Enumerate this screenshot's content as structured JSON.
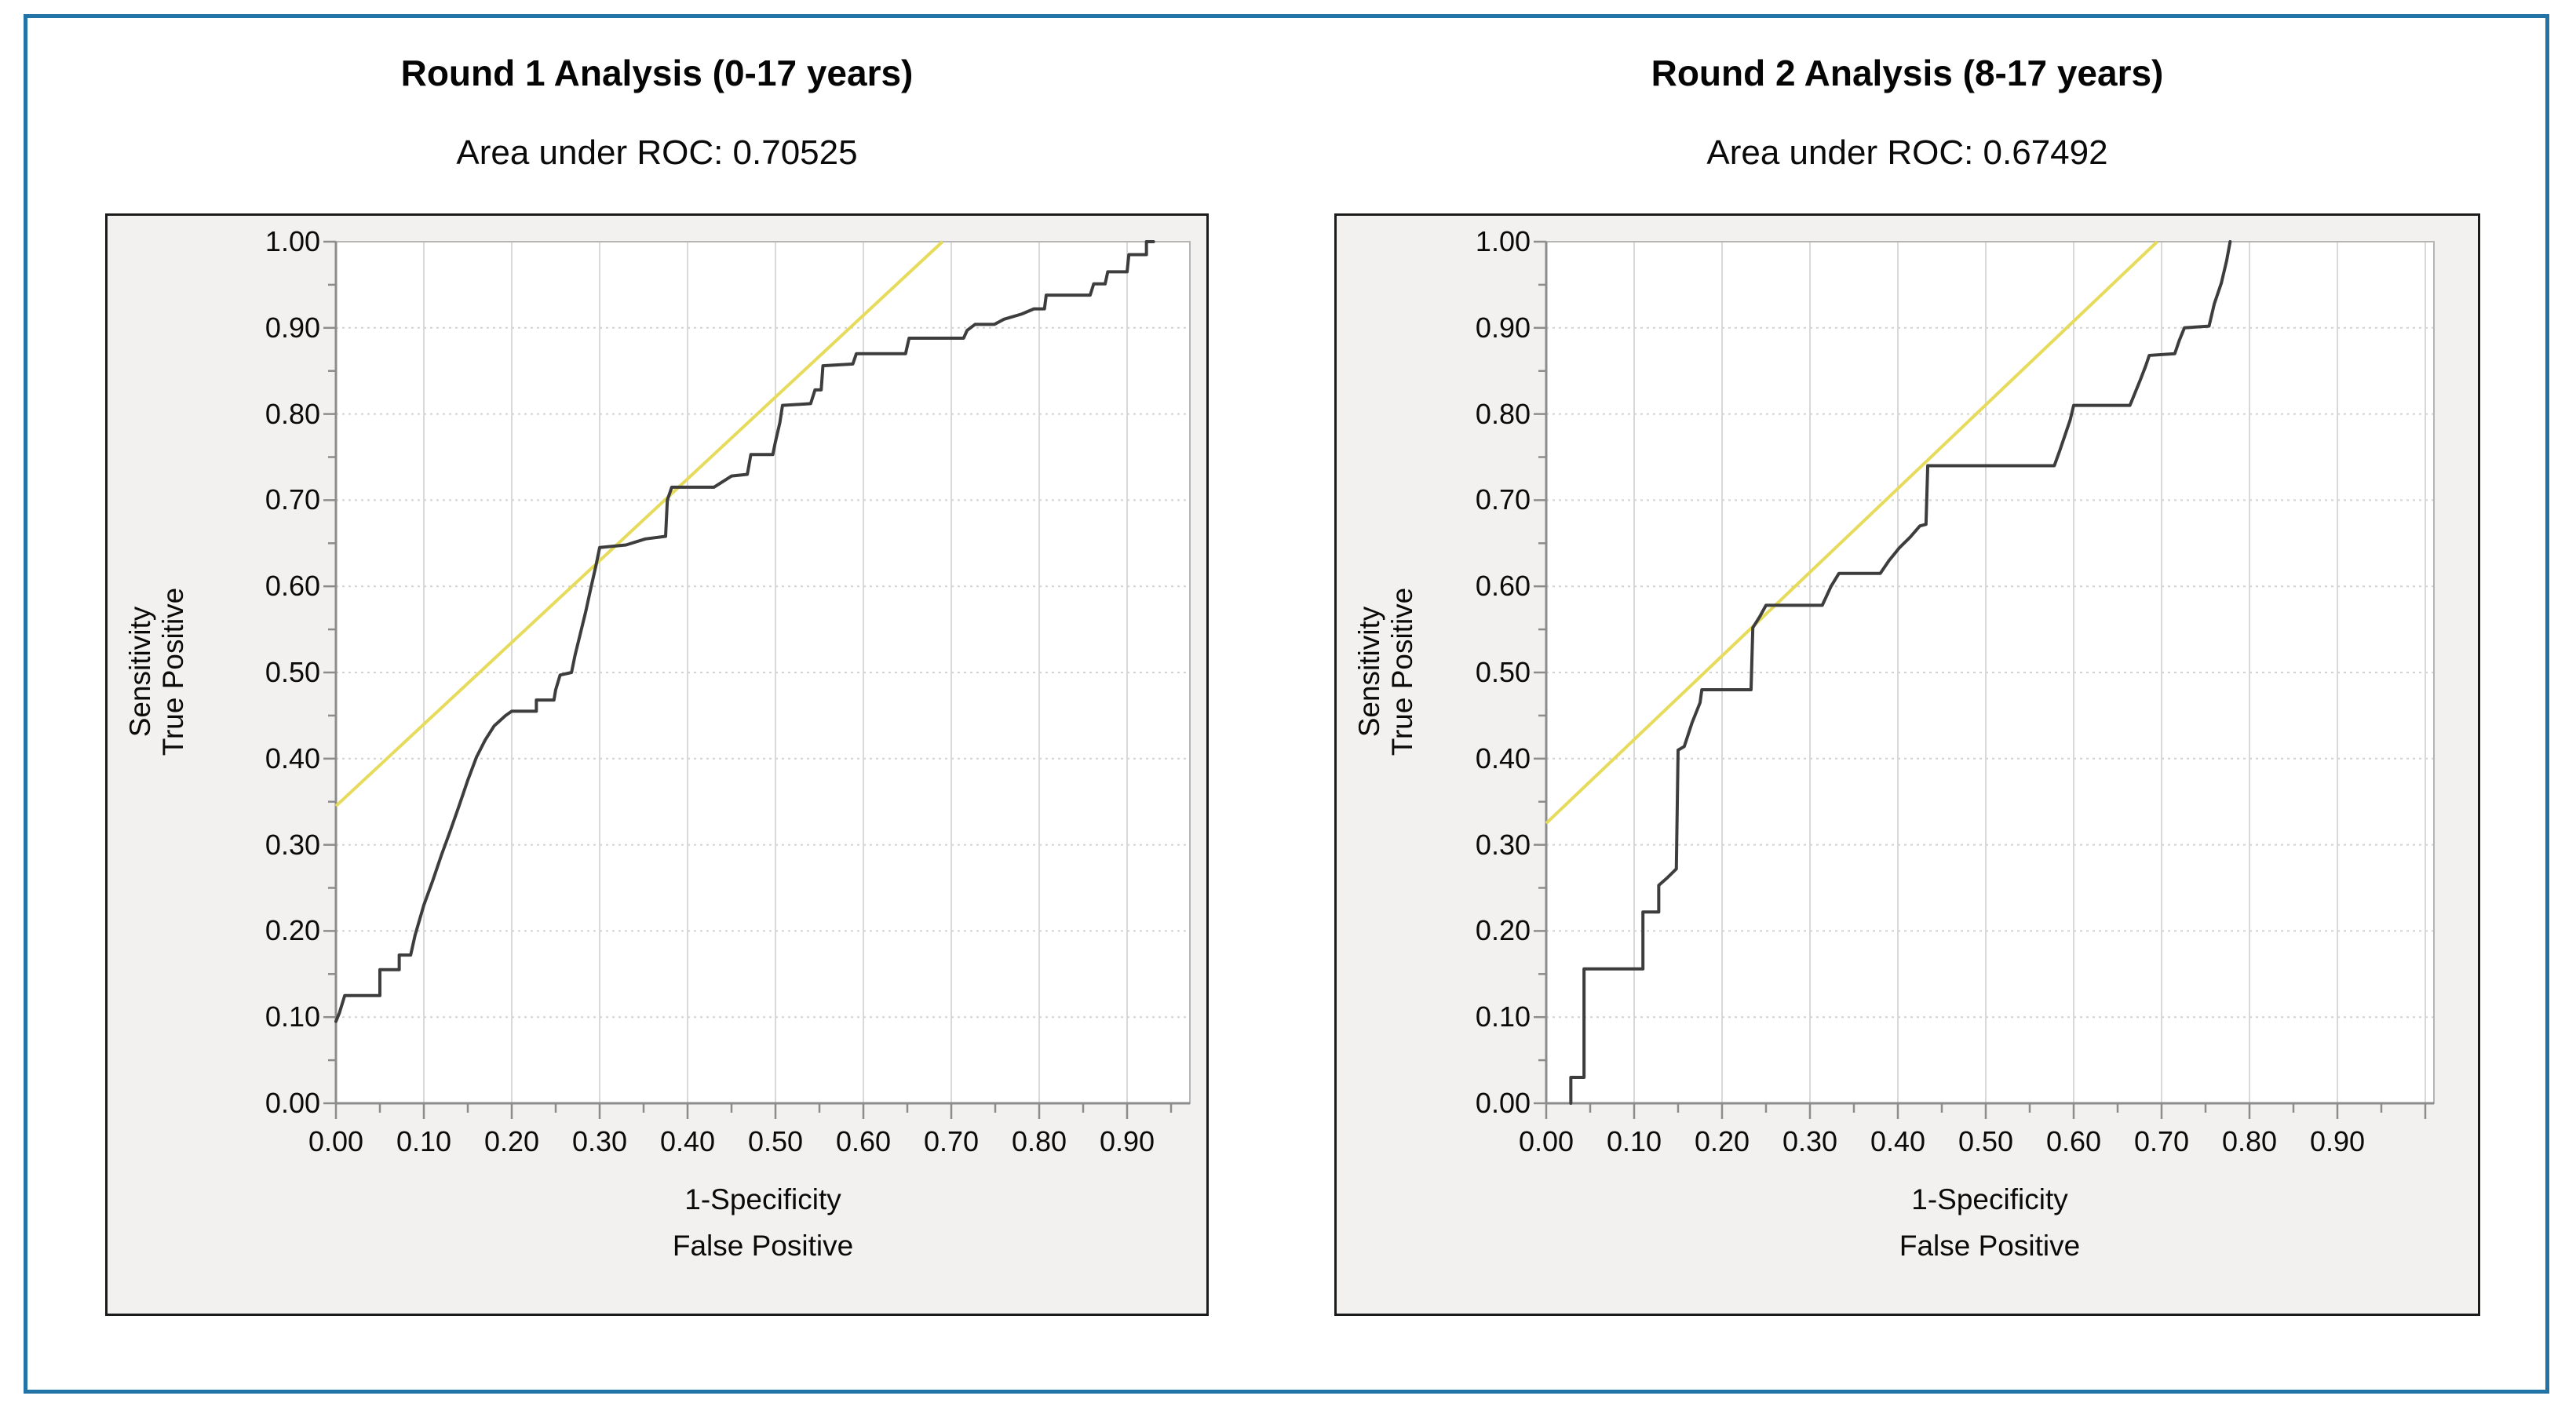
{
  "style": {
    "frame_color": "#2374a6",
    "page_background": "#ffffff",
    "panel_background": "#f2f1ef",
    "panel_border_color": "#1b1b1b",
    "plot_background": "#ffffff",
    "plot_border_color": "#b5b5b5",
    "grid_vertical_color": "#d9d9d9",
    "grid_horizontal_color": "#d2d2d2",
    "axis_line_color": "#8c8c8c",
    "tick_mark_color": "#8c8c8c",
    "curve_color": "#3d3d3d",
    "reference_line_color": "#e6db5b",
    "text_color": "#0a0a0a"
  },
  "chart_data": [
    {
      "type": "line",
      "title": "Round 1 Analysis (0-17 years)",
      "subtitle": "Area under ROC: 0.70525",
      "area_under_roc": 0.70525,
      "xlabel_line1": "1-Specificity",
      "xlabel_line2": "False Positive",
      "ylabel_line1": "Sensitivity",
      "ylabel_line2": "True Positive",
      "xlim": [
        0,
        0.97
      ],
      "ylim": [
        0,
        1.0
      ],
      "x_major_ticks": [
        "0.00",
        "0.10",
        "0.20",
        "0.30",
        "0.40",
        "0.50",
        "0.60",
        "0.70",
        "0.80",
        "0.90"
      ],
      "y_major_ticks": [
        "0.00",
        "0.10",
        "0.20",
        "0.30",
        "0.40",
        "0.50",
        "0.60",
        "0.70",
        "0.80",
        "0.90",
        "1.00"
      ],
      "minor_tick_step": 0.05,
      "grid": "on",
      "legend": "none",
      "reference_line": [
        [
          0.0,
          0.345
        ],
        [
          0.69,
          1.0
        ]
      ],
      "roc_points": [
        [
          0.0,
          0.095
        ],
        [
          0.004,
          0.105
        ],
        [
          0.01,
          0.125
        ],
        [
          0.05,
          0.125
        ],
        [
          0.05,
          0.155
        ],
        [
          0.072,
          0.155
        ],
        [
          0.072,
          0.172
        ],
        [
          0.085,
          0.172
        ],
        [
          0.09,
          0.195
        ],
        [
          0.1,
          0.23
        ],
        [
          0.11,
          0.258
        ],
        [
          0.12,
          0.288
        ],
        [
          0.13,
          0.316
        ],
        [
          0.14,
          0.345
        ],
        [
          0.15,
          0.375
        ],
        [
          0.16,
          0.402
        ],
        [
          0.17,
          0.422
        ],
        [
          0.18,
          0.438
        ],
        [
          0.193,
          0.45
        ],
        [
          0.2,
          0.455
        ],
        [
          0.228,
          0.455
        ],
        [
          0.228,
          0.468
        ],
        [
          0.248,
          0.468
        ],
        [
          0.25,
          0.48
        ],
        [
          0.255,
          0.497
        ],
        [
          0.268,
          0.5
        ],
        [
          0.272,
          0.52
        ],
        [
          0.278,
          0.545
        ],
        [
          0.284,
          0.57
        ],
        [
          0.29,
          0.598
        ],
        [
          0.296,
          0.625
        ],
        [
          0.3,
          0.645
        ],
        [
          0.33,
          0.648
        ],
        [
          0.352,
          0.655
        ],
        [
          0.375,
          0.658
        ],
        [
          0.377,
          0.7
        ],
        [
          0.382,
          0.715
        ],
        [
          0.43,
          0.715
        ],
        [
          0.45,
          0.728
        ],
        [
          0.468,
          0.73
        ],
        [
          0.472,
          0.753
        ],
        [
          0.497,
          0.753
        ],
        [
          0.5,
          0.768
        ],
        [
          0.505,
          0.79
        ],
        [
          0.508,
          0.81
        ],
        [
          0.54,
          0.812
        ],
        [
          0.545,
          0.828
        ],
        [
          0.552,
          0.828
        ],
        [
          0.554,
          0.856
        ],
        [
          0.588,
          0.858
        ],
        [
          0.592,
          0.87
        ],
        [
          0.648,
          0.87
        ],
        [
          0.652,
          0.888
        ],
        [
          0.714,
          0.888
        ],
        [
          0.718,
          0.897
        ],
        [
          0.727,
          0.904
        ],
        [
          0.749,
          0.904
        ],
        [
          0.76,
          0.91
        ],
        [
          0.78,
          0.916
        ],
        [
          0.794,
          0.922
        ],
        [
          0.806,
          0.922
        ],
        [
          0.808,
          0.938
        ],
        [
          0.858,
          0.938
        ],
        [
          0.862,
          0.951
        ],
        [
          0.875,
          0.951
        ],
        [
          0.878,
          0.965
        ],
        [
          0.9,
          0.965
        ],
        [
          0.902,
          0.985
        ],
        [
          0.922,
          0.985
        ],
        [
          0.922,
          1.0
        ],
        [
          0.93,
          1.0
        ]
      ]
    },
    {
      "type": "line",
      "title": "Round 2 Analysis (8-17 years)",
      "subtitle": "Area under ROC: 0.67492",
      "area_under_roc": 0.67492,
      "xlabel_line1": "1-Specificity",
      "xlabel_line2": "False Positive",
      "ylabel_line1": "Sensitivity",
      "ylabel_line2": "True Positive",
      "xlim": [
        0,
        1.01
      ],
      "ylim": [
        0,
        1.0
      ],
      "x_major_ticks": [
        "0.00",
        "0.10",
        "0.20",
        "0.30",
        "0.40",
        "0.50",
        "0.60",
        "0.70",
        "0.80",
        "0.90"
      ],
      "y_major_ticks": [
        "0.00",
        "0.10",
        "0.20",
        "0.30",
        "0.40",
        "0.50",
        "0.60",
        "0.70",
        "0.80",
        "0.90",
        "1.00"
      ],
      "minor_tick_step": 0.05,
      "grid": "on",
      "legend": "none",
      "reference_line": [
        [
          0.0,
          0.325
        ],
        [
          0.695,
          1.0
        ]
      ],
      "roc_points": [
        [
          0.028,
          0.0
        ],
        [
          0.028,
          0.03
        ],
        [
          0.043,
          0.03
        ],
        [
          0.043,
          0.156
        ],
        [
          0.11,
          0.156
        ],
        [
          0.11,
          0.222
        ],
        [
          0.128,
          0.222
        ],
        [
          0.128,
          0.253
        ],
        [
          0.138,
          0.262
        ],
        [
          0.148,
          0.272
        ],
        [
          0.15,
          0.41
        ],
        [
          0.157,
          0.414
        ],
        [
          0.166,
          0.442
        ],
        [
          0.175,
          0.465
        ],
        [
          0.177,
          0.48
        ],
        [
          0.233,
          0.48
        ],
        [
          0.235,
          0.552
        ],
        [
          0.243,
          0.565
        ],
        [
          0.25,
          0.578
        ],
        [
          0.314,
          0.578
        ],
        [
          0.324,
          0.6
        ],
        [
          0.333,
          0.615
        ],
        [
          0.38,
          0.615
        ],
        [
          0.39,
          0.63
        ],
        [
          0.402,
          0.645
        ],
        [
          0.414,
          0.657
        ],
        [
          0.425,
          0.67
        ],
        [
          0.432,
          0.672
        ],
        [
          0.434,
          0.74
        ],
        [
          0.578,
          0.74
        ],
        [
          0.584,
          0.757
        ],
        [
          0.59,
          0.775
        ],
        [
          0.596,
          0.793
        ],
        [
          0.6,
          0.81
        ],
        [
          0.664,
          0.81
        ],
        [
          0.67,
          0.825
        ],
        [
          0.676,
          0.84
        ],
        [
          0.682,
          0.856
        ],
        [
          0.686,
          0.868
        ],
        [
          0.715,
          0.87
        ],
        [
          0.72,
          0.885
        ],
        [
          0.726,
          0.9
        ],
        [
          0.754,
          0.902
        ],
        [
          0.76,
          0.928
        ],
        [
          0.768,
          0.952
        ],
        [
          0.774,
          0.978
        ],
        [
          0.778,
          1.0
        ]
      ]
    }
  ]
}
